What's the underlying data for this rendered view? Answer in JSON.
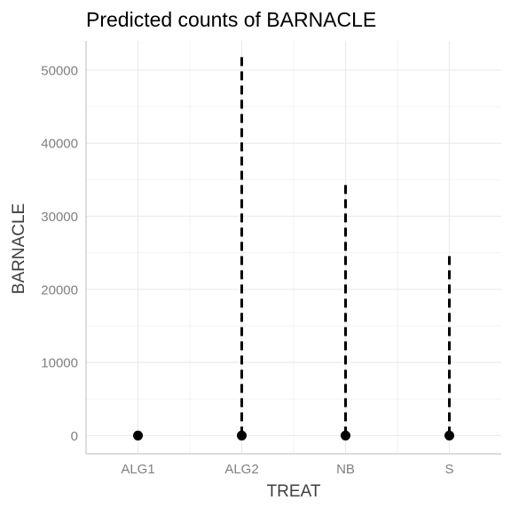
{
  "chart_data": {
    "type": "scatter",
    "title": "Predicted counts of BARNACLE",
    "xlabel": "TREAT",
    "ylabel": "BARNACLE",
    "categories": [
      "ALG1",
      "ALG2",
      "NB",
      "S"
    ],
    "series": [
      {
        "values": [
          0,
          0,
          0,
          0
        ],
        "interval_low": [
          0,
          0,
          0,
          0
        ],
        "interval_high": [
          500,
          52000,
          34500,
          25000
        ]
      }
    ],
    "y_ticks": [
      0,
      10000,
      20000,
      30000,
      40000,
      50000
    ],
    "y_tick_labels": [
      "0",
      "10000",
      "20000",
      "30000",
      "40000",
      "50000"
    ],
    "ylim": [
      -2500,
      54000
    ],
    "grid": true,
    "legend": "none",
    "colors": {
      "point": "#000000",
      "interval": "#000000",
      "grid_major": "#ebebeb",
      "grid_minor": "#f3f3f3",
      "axis_line": "#c8c8c8",
      "tick_text": "#808080",
      "title_text": "#000000",
      "axis_title_text": "#404040"
    }
  }
}
